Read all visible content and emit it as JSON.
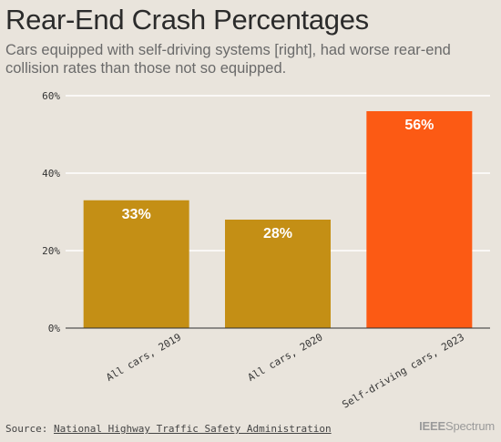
{
  "header": {
    "title": "Rear-End Crash Percentages",
    "subtitle": "Cars equipped with self-driving systems [right], had worse rear-end collision rates than those not so equipped."
  },
  "footer": {
    "source_prefix": "Source:",
    "source_link": "National Highway Traffic Safety Administration",
    "brand_bold": "IEEE",
    "brand_light": "Spectrum"
  },
  "colors": {
    "standard_bar": "#c48f15",
    "self_driving_bar": "#fc5a14",
    "gridline": "#ffffff",
    "axis": "#2f2f2f"
  },
  "chart_data": {
    "type": "bar",
    "categories": [
      "All cars, 2019",
      "All cars, 2020",
      "Self-driving cars, 2023"
    ],
    "values": [
      33,
      28,
      56
    ],
    "value_labels": [
      "33%",
      "28%",
      "56%"
    ],
    "ylim": [
      0,
      60
    ],
    "yticks": [
      0,
      20,
      40,
      60
    ],
    "ytick_labels": [
      "0%",
      "20%",
      "40%",
      "60%"
    ],
    "grid": true,
    "highlight_index": 2
  }
}
